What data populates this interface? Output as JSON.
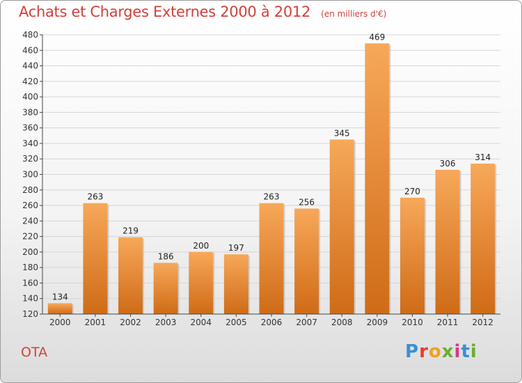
{
  "title": "Achats et Charges Externes 2000 à 2012",
  "unit": "(en milliers d'€)",
  "commune": "OTA",
  "brand": "Proxiti",
  "colors": {
    "title": "#d2403a",
    "bar_light": "#f7a85a",
    "bar_dark": "#cf6b16",
    "grid": "#d6d6d6",
    "axis": "#444444"
  },
  "chart_data": {
    "type": "bar",
    "title": "Achats et Charges Externes 2000 à 2012",
    "subtitle": "(en milliers d'€)",
    "xlabel": "",
    "ylabel": "",
    "categories": [
      "2000",
      "2001",
      "2002",
      "2003",
      "2004",
      "2005",
      "2006",
      "2007",
      "2008",
      "2009",
      "2010",
      "2011",
      "2012"
    ],
    "values": [
      134,
      263,
      219,
      186,
      200,
      197,
      263,
      256,
      345,
      469,
      270,
      306,
      314
    ],
    "ylim": [
      120,
      480
    ],
    "yticks": [
      120,
      140,
      160,
      180,
      200,
      220,
      240,
      260,
      280,
      300,
      320,
      340,
      360,
      380,
      400,
      420,
      440,
      460,
      480
    ],
    "grid": true,
    "data_labels": true
  }
}
